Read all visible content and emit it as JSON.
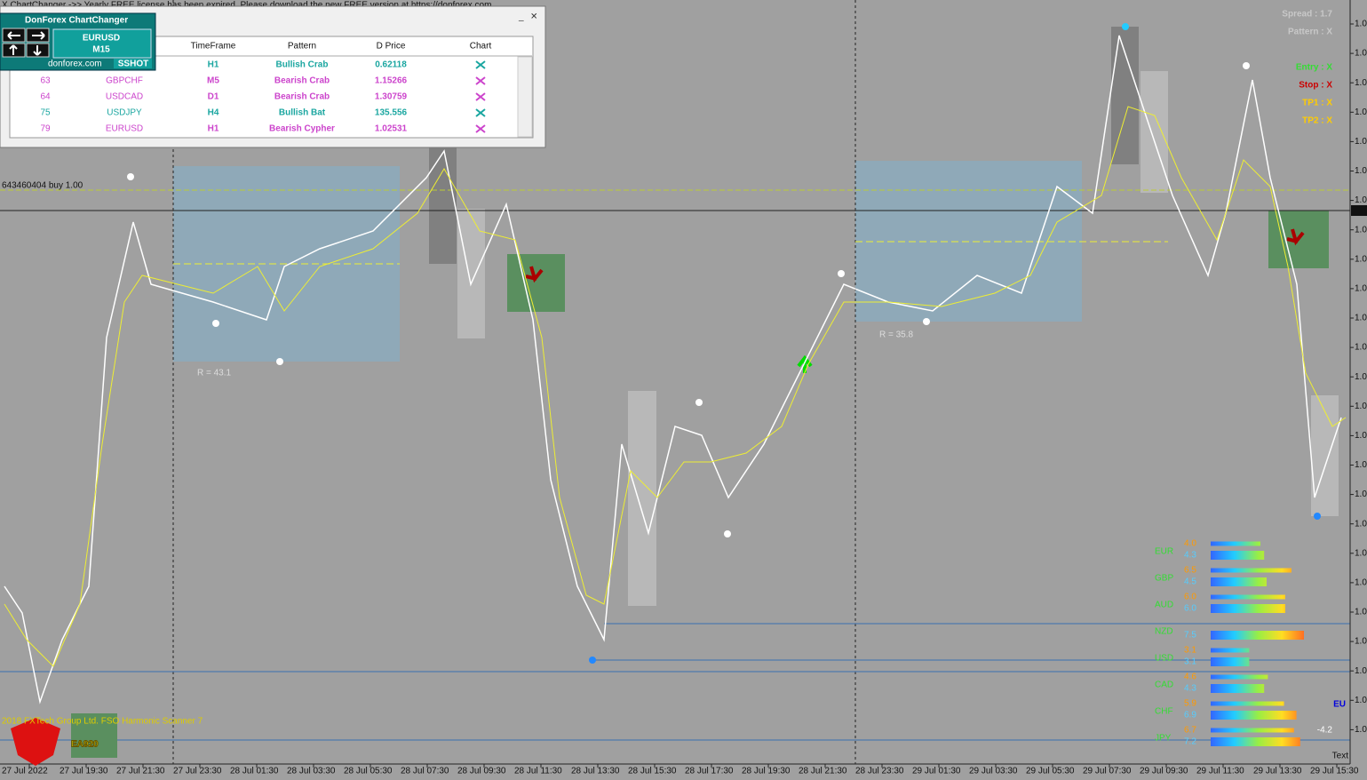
{
  "header": {
    "notice": "X ChartChanger ->> Yearly FREE license has been expired. Please download the new FREE version at https://donforex.com"
  },
  "panel": {
    "title": "DonForex ChartChanger",
    "symbol": "EURUSD",
    "timeframe": "M15",
    "site": "donforex.com",
    "button": "SSHOT"
  },
  "table": {
    "columns": [
      "TimeFrame",
      "Pattern",
      "D Price",
      "Chart"
    ],
    "rows": [
      {
        "timeframe": "H1",
        "pattern": "Bullish Crab",
        "price": "0.62118",
        "color": "#1aa6a0"
      },
      {
        "id": "63",
        "symbol": "GBPCHF",
        "timeframe": "M5",
        "pattern": "Bearish Crab",
        "price": "1.15266",
        "color": "#cc44cc"
      },
      {
        "id": "64",
        "symbol": "USDCAD",
        "timeframe": "D1",
        "pattern": "Bearish Crab",
        "price": "1.30759",
        "color": "#cc44cc"
      },
      {
        "id": "75",
        "symbol": "USDJPY",
        "timeframe": "H4",
        "pattern": "Bullish Bat",
        "price": "135.556",
        "color": "#1aa6a0"
      },
      {
        "id": "79",
        "symbol": "EURUSD",
        "timeframe": "H1",
        "pattern": "Bearish Cypher",
        "price": "1.02531",
        "color": "#cc44cc"
      }
    ]
  },
  "info": {
    "spread": "Spread : 1.7",
    "pattern": "Pattern : X",
    "entry": "Entry : X",
    "stop": "Stop : X",
    "tp1": "TP1 : X",
    "tp2": "TP2 : X"
  },
  "order_label": "643460404 buy 1.00",
  "r_labels": [
    "R = 43.1",
    "R = 35.8"
  ],
  "strength": [
    {
      "currency": "EUR",
      "rows": [
        {
          "value": 4,
          "label": "4.0"
        },
        {
          "value": 4.3,
          "label": "4.3"
        }
      ]
    },
    {
      "currency": "GBP",
      "rows": [
        {
          "value": 6.5,
          "label": "6.5"
        },
        {
          "value": 4.5,
          "label": "4.5"
        }
      ]
    },
    {
      "currency": "AUD",
      "rows": [
        {
          "value": 6,
          "label": "6.0"
        },
        {
          "value": 6,
          "label": "6.0"
        }
      ]
    },
    {
      "currency": "NZD",
      "rows": [
        {
          "value": 7.5,
          "label": "7.5"
        }
      ]
    },
    {
      "currency": "USD",
      "rows": [
        {
          "value": 3.1,
          "label": "3.1"
        },
        {
          "value": 3.1,
          "label": "3.1"
        }
      ]
    },
    {
      "currency": "CAD",
      "rows": [
        {
          "value": 4.6,
          "label": "4.6"
        },
        {
          "value": 4.3,
          "label": "4.3"
        }
      ]
    },
    {
      "currency": "CHF",
      "rows": [
        {
          "value": 5.9,
          "label": "5.9"
        },
        {
          "value": 6.9,
          "label": "6.9"
        }
      ]
    },
    {
      "currency": "JPY",
      "rows": [
        {
          "value": 6.7,
          "label": "6.7"
        },
        {
          "value": 7.2,
          "label": "7.2"
        }
      ]
    }
  ],
  "badge": "EU",
  "score": -4.2,
  "corner_text": "Text",
  "watermark": "2018 FXTech Group Ltd. FSO Harmonic Scanner 7",
  "logo": "EA920",
  "time_axis": [
    "27 Jul 2022",
    "27 Jul 19:30",
    "27 Jul 21:30",
    "27 Jul 23:30",
    "28 Jul 01:30",
    "28 Jul 03:30",
    "28 Jul 05:30",
    "28 Jul 07:30",
    "28 Jul 09:30",
    "28 Jul 11:30",
    "28 Jul 13:30",
    "28 Jul 15:30",
    "28 Jul 17:30",
    "28 Jul 19:30",
    "28 Jul 21:30",
    "28 Jul 23:30",
    "29 Jul 01:30",
    "29 Jul 03:30",
    "29 Jul 05:30",
    "29 Jul 07:30",
    "29 Jul 09:30",
    "29 Jul 11:30",
    "29 Jul 13:30",
    "29 Jul 15:30"
  ],
  "price_axis": [
    "1.0",
    "1.0",
    "1.0",
    "1.0",
    "1.0",
    "1.0",
    "1.0",
    "1.0",
    "1.0",
    "1.0",
    "1.0",
    "1.0",
    "1.0",
    "1.0",
    "1.0",
    "1.0",
    "1.0",
    "1.0",
    "1.0",
    "1.0",
    "1.0",
    "1.0",
    "1.0",
    "1.0",
    "1.0"
  ]
}
